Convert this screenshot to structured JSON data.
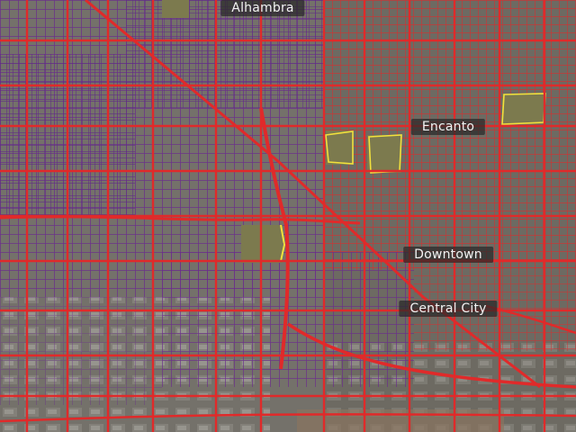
{
  "map": {
    "labels": [
      {
        "id": "alhambra",
        "text": "Alhambra"
      },
      {
        "id": "encanto",
        "text": "Encanto"
      },
      {
        "id": "downtown",
        "text": "Downtown"
      },
      {
        "id": "central-city",
        "text": "Central City"
      }
    ],
    "colors": {
      "aerial_base": "#6d6a62",
      "residential_streets": "#6a2c8c",
      "major_roads": "#e02a2a",
      "park": "#7c7a4e",
      "park_outline": "#f2e13c"
    }
  }
}
